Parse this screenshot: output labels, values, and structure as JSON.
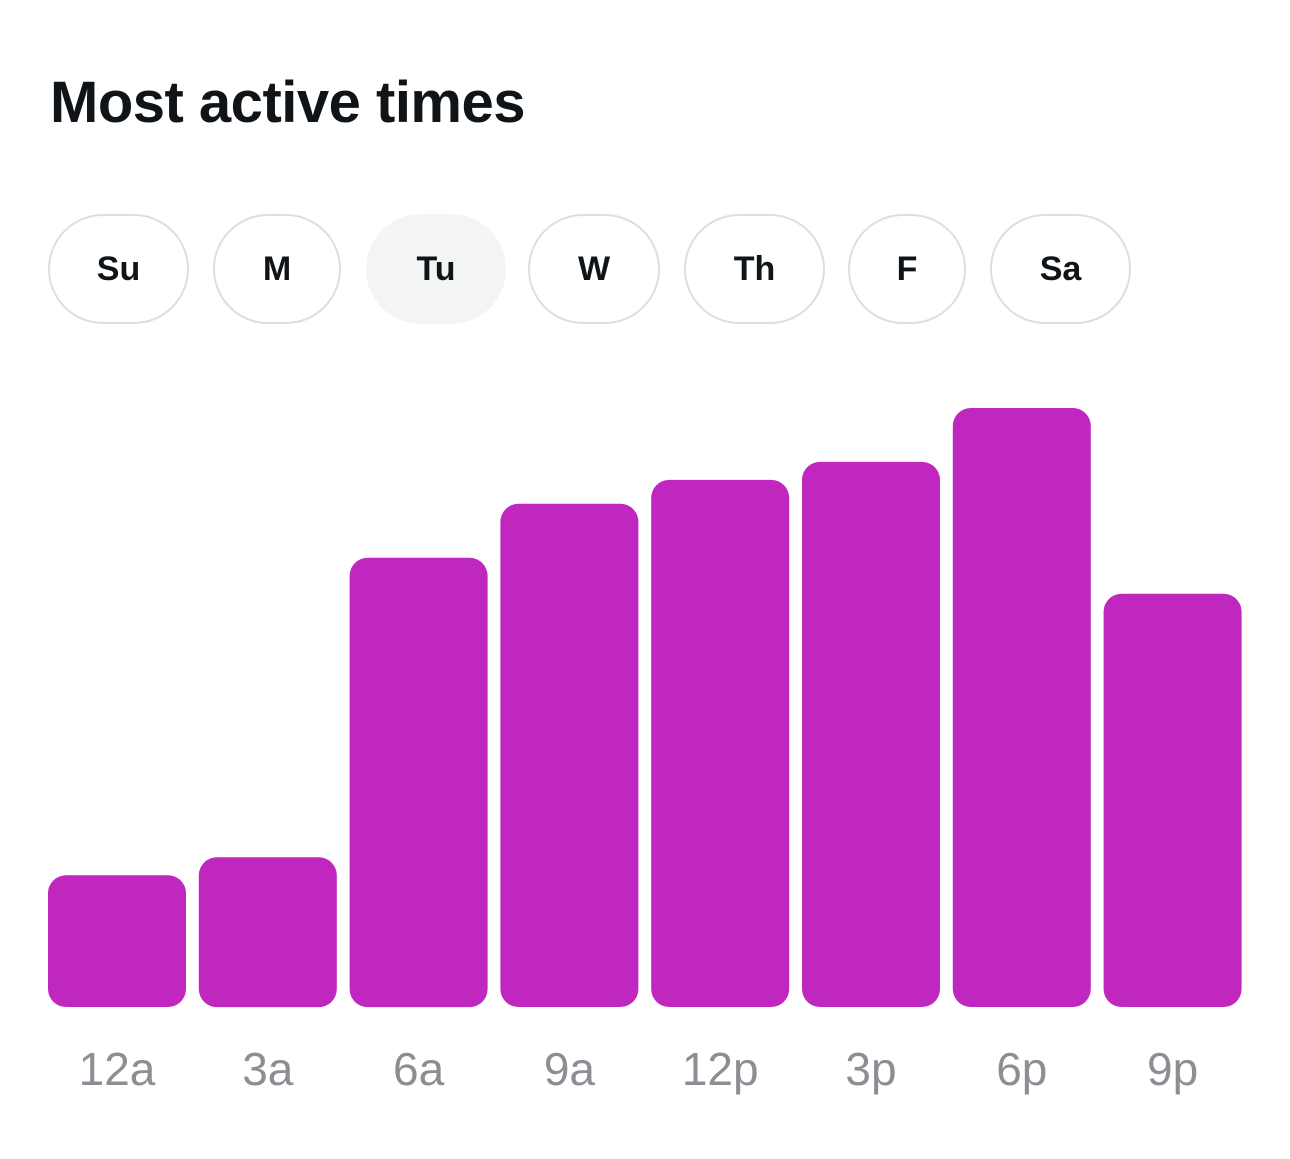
{
  "title": "Most active times",
  "days": {
    "selected": "Tu",
    "items": [
      {
        "key": "su",
        "label": "Su"
      },
      {
        "key": "m",
        "label": "M"
      },
      {
        "key": "tu",
        "label": "Tu"
      },
      {
        "key": "w",
        "label": "W"
      },
      {
        "key": "th",
        "label": "Th"
      },
      {
        "key": "f",
        "label": "F"
      },
      {
        "key": "sa",
        "label": "Sa"
      }
    ]
  },
  "colors": {
    "bar": "#c027bf",
    "label": "#8b8f93"
  },
  "chart_data": {
    "type": "bar",
    "title": "Most active times",
    "categories": [
      "12a",
      "3a",
      "6a",
      "9a",
      "12p",
      "3p",
      "6p",
      "9p"
    ],
    "values": [
      22,
      25,
      75,
      84,
      88,
      91,
      100,
      69
    ],
    "xlabel": "",
    "ylabel": "",
    "ylim": [
      0,
      100
    ],
    "grid": false,
    "legend": "none"
  }
}
